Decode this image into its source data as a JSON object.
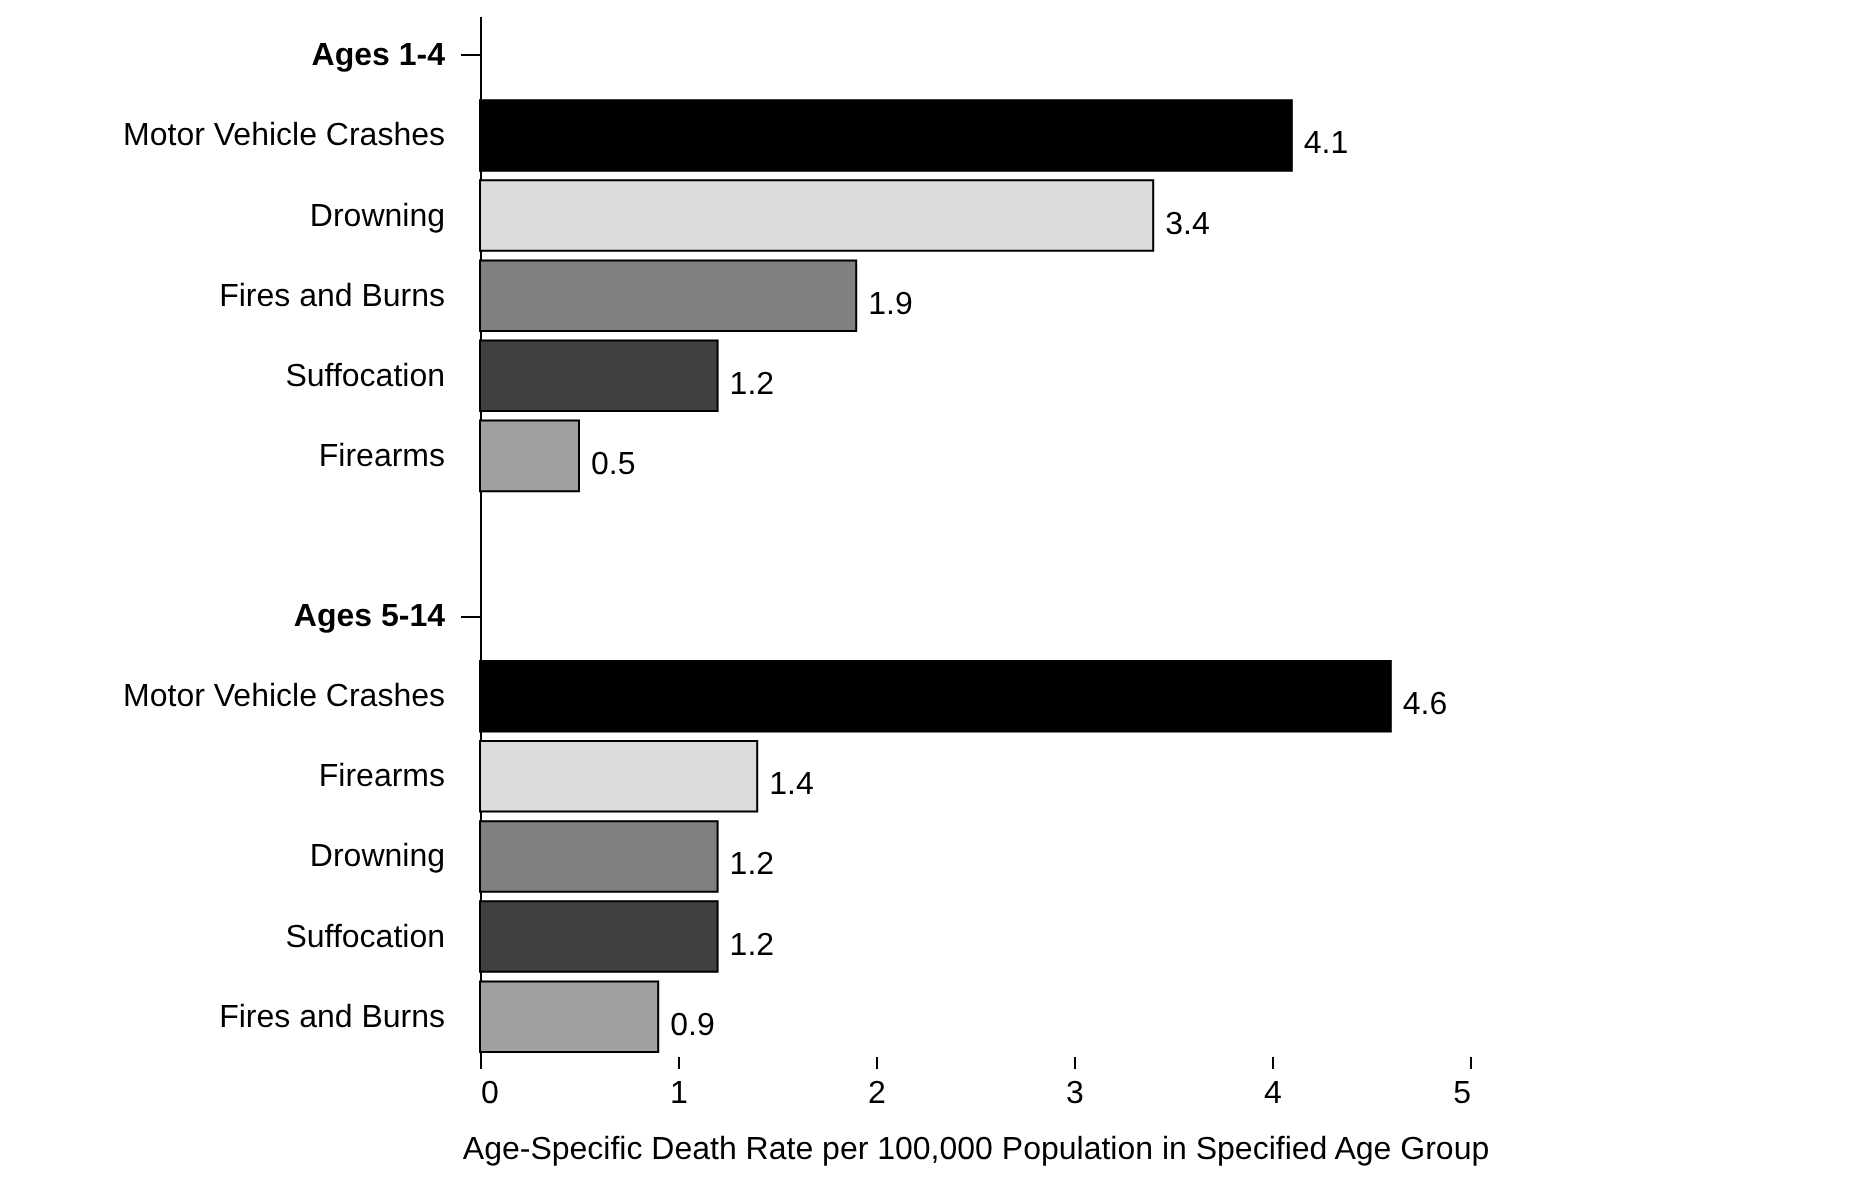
{
  "chart_data": {
    "type": "bar",
    "orientation": "horizontal",
    "xlabel": "Age-Specific Death Rate per 100,000 Population in Specified Age Group",
    "categories": [
      "Ages 1-4",
      "Motor Vehicle Crashes",
      "Drowning",
      "Fires and Burns",
      "Suffocation",
      "Firearms",
      null,
      "Ages 5-14",
      "Motor Vehicle Crashes",
      "Firearms",
      "Drowning",
      "Suffocation",
      "Fires and Burns"
    ],
    "values": [
      null,
      4.1,
      3.4,
      1.9,
      1.2,
      0.5,
      null,
      null,
      4.6,
      1.4,
      1.2,
      1.2,
      0.9
    ],
    "colors": [
      null,
      "#000000",
      "#dcdcdc",
      "#808080",
      "#404040",
      "#a0a0a0",
      null,
      null,
      "#000000",
      "#dcdcdc",
      "#808080",
      "#404040",
      "#a0a0a0"
    ],
    "xlim": [
      0,
      5
    ],
    "xticks": [
      0,
      1,
      2,
      3,
      4,
      5
    ],
    "data_labels": true,
    "grid": false
  }
}
